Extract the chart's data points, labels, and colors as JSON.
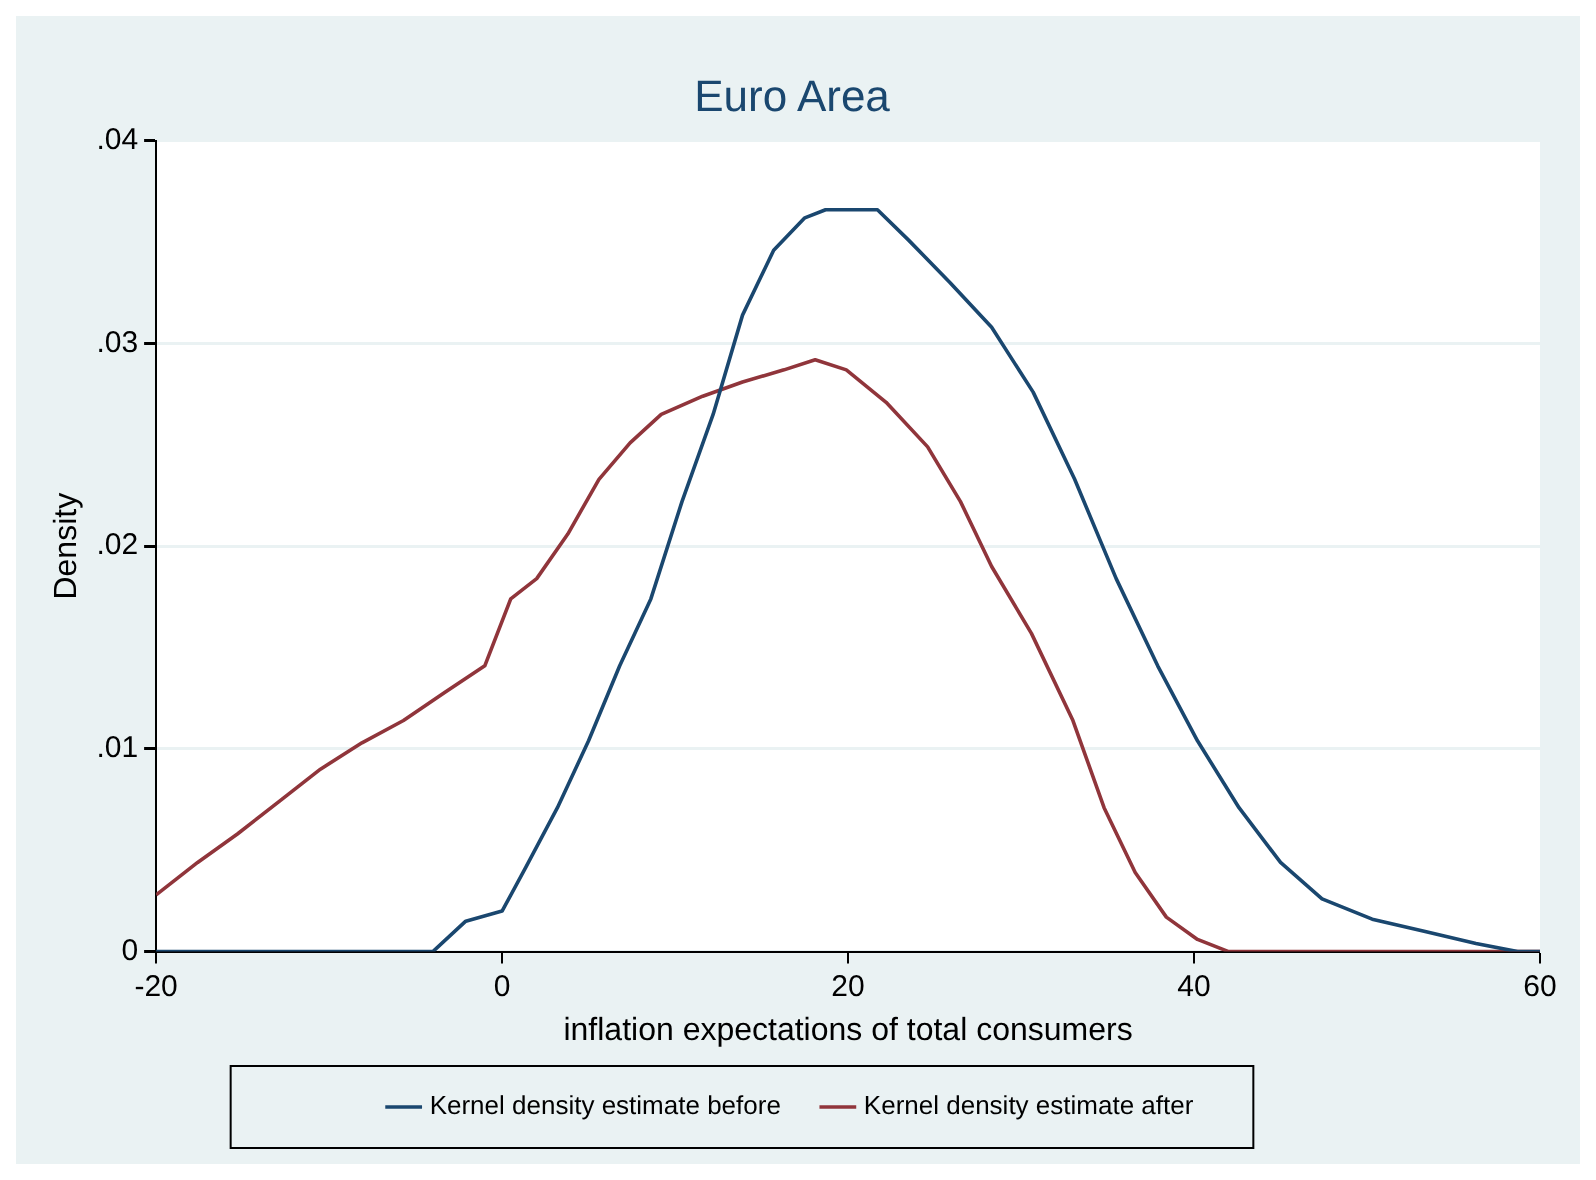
{
  "chart_data": {
    "type": "line",
    "title": "Euro Area",
    "xlabel": "inflation expectations of total consumers",
    "ylabel": "Density",
    "xlim": [
      -20,
      60
    ],
    "xticks": [
      -20,
      0,
      20,
      40,
      60
    ],
    "ylim": [
      0,
      0.04
    ],
    "yticks": [
      0,
      {
        "value": 0.01,
        "label": ".01"
      },
      {
        "value": 0.02,
        "label": ".02"
      },
      {
        "value": 0.03,
        "label": ".03"
      },
      {
        "value": 0.04,
        "label": ".04"
      }
    ],
    "grid": "y",
    "legend": "bottom",
    "marker": "none",
    "line_style": "solid",
    "series": [
      {
        "name": "Kernel density estimate before",
        "color": "#1a476f",
        "x": [
          -20,
          -4,
          -2.1,
          0,
          1.4,
          3.2,
          5,
          6.8,
          8.6,
          10.4,
          12.2,
          13.9,
          15.7,
          17.5,
          18.7,
          21.7,
          23.5,
          25.9,
          28.3,
          30.7,
          33.1,
          35.5,
          37.9,
          40.2,
          42.6,
          45,
          47.4,
          50.3,
          53.3,
          56.3,
          58.7,
          60
        ],
        "values": [
          0,
          0,
          0.0015,
          0.002,
          0.0042,
          0.0071,
          0.0104,
          0.0141,
          0.0174,
          0.0222,
          0.0265,
          0.0314,
          0.0346,
          0.0362,
          0.0366,
          0.0366,
          0.0351,
          0.033,
          0.0308,
          0.0276,
          0.0233,
          0.0184,
          0.0141,
          0.0104,
          0.0071,
          0.0044,
          0.0026,
          0.0016,
          0.001,
          0.0004,
          0,
          0
        ]
      },
      {
        "name": "Kernel density estimate after",
        "color": "#90353b",
        "x": [
          -20,
          -17.6,
          -15.3,
          -12.9,
          -10.5,
          -8.1,
          -5.7,
          -3.3,
          -1,
          0.5,
          2,
          3.8,
          5.6,
          7.4,
          9.2,
          11.6,
          13.9,
          16.3,
          18.1,
          19.9,
          22.2,
          24.6,
          26.5,
          28.3,
          30.6,
          33,
          34.8,
          36.6,
          38.4,
          40.2,
          42,
          60
        ],
        "values": [
          0.0028,
          0.0044,
          0.0058,
          0.0074,
          0.009,
          0.0103,
          0.0114,
          0.0128,
          0.0141,
          0.0174,
          0.0184,
          0.0206,
          0.0233,
          0.0251,
          0.0265,
          0.0274,
          0.0281,
          0.0287,
          0.0292,
          0.0287,
          0.0271,
          0.0249,
          0.0222,
          0.019,
          0.0157,
          0.0114,
          0.0071,
          0.0039,
          0.0017,
          0.0006,
          0,
          0
        ]
      }
    ]
  }
}
